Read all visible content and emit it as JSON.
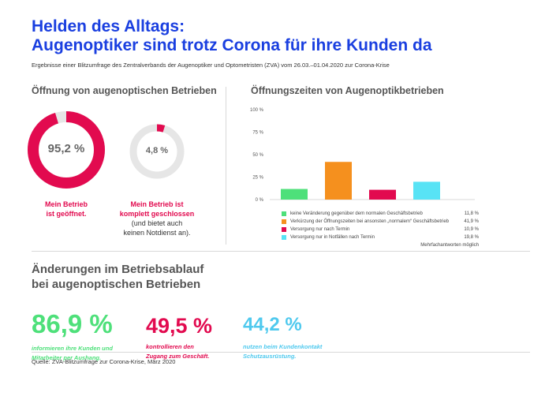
{
  "header": {
    "title_line1": "Helden des Alltags:",
    "title_line2": "Augenoptiker sind trotz Corona für ihre Kunden da",
    "subtitle": "Ergebnisse einer Blitzumfrage des Zentralverbands der Augenoptiker und Optometristen (ZVA) vom 26.03.–01.04.2020 zur Corona-Krise"
  },
  "opening": {
    "heading": "Öffnung von augenoptischen Betrieben",
    "open": {
      "value": 95.2,
      "label": "95,2 %",
      "caption_line1": "Mein Betrieb",
      "caption_line2": "ist geöffnet.",
      "color": "#e20a4f"
    },
    "closed": {
      "value": 4.8,
      "label": "4,8 %",
      "caption_line1": "Mein Betrieb ist",
      "caption_line2": "komplett geschlossen",
      "note_line1": "(und bietet auch",
      "note_line2": "keinen Notdienst an).",
      "color": "#e20a4f"
    },
    "track_color": "#e6e6e6"
  },
  "hours": {
    "heading": "Öffnungszeiten von Augenoptikbetrieben",
    "footnote": "Mehrfachantworten möglich"
  },
  "chart_data": {
    "type": "bar",
    "ylim": [
      0,
      100
    ],
    "yticks": [
      "0 %",
      "25 %",
      "50 %",
      "75 %",
      "100 %"
    ],
    "grid": false,
    "legend_position": "bottom",
    "categories": [
      "keine Veränderung gegenüber dem normalen Geschäftsbetrieb",
      "Verkürzung der Öffnungszeiten bei ansonsten „normalem“ Geschäftsbetrieb",
      "Versorgung nur nach Termin",
      "Versorgung nur in Notfällen nach Termin"
    ],
    "values": [
      11.8,
      41.9,
      10.9,
      19.8
    ],
    "value_labels": [
      "11,8 %",
      "41,9 %",
      "10,9 %",
      "19,8 %"
    ],
    "colors": [
      "#4ee07a",
      "#f5901e",
      "#e20a4f",
      "#58e3f5"
    ]
  },
  "changes": {
    "heading_line1": "Änderungen im Betriebsablauf",
    "heading_line2": "bei augenoptischen Betrieben",
    "stats": [
      {
        "value": "86,9 %",
        "desc_line1": "informieren ihre Kunden und",
        "desc_line2": "Mitarbeiter per Aushang.",
        "color": "#4ee07a"
      },
      {
        "value": "49,5 %",
        "desc_line1": "kontrollieren den",
        "desc_line2": "Zugang zum Geschäft.",
        "color": "#e20a4f"
      },
      {
        "value": "44,2 %",
        "desc_line1": "nutzen beim Kundenkontakt",
        "desc_line2": "Schutzausrüstung.",
        "color": "#4fc9ee"
      }
    ]
  },
  "source": "Quelle: ZVA-Blitzumfrage zur Corona-Krise, März 2020"
}
